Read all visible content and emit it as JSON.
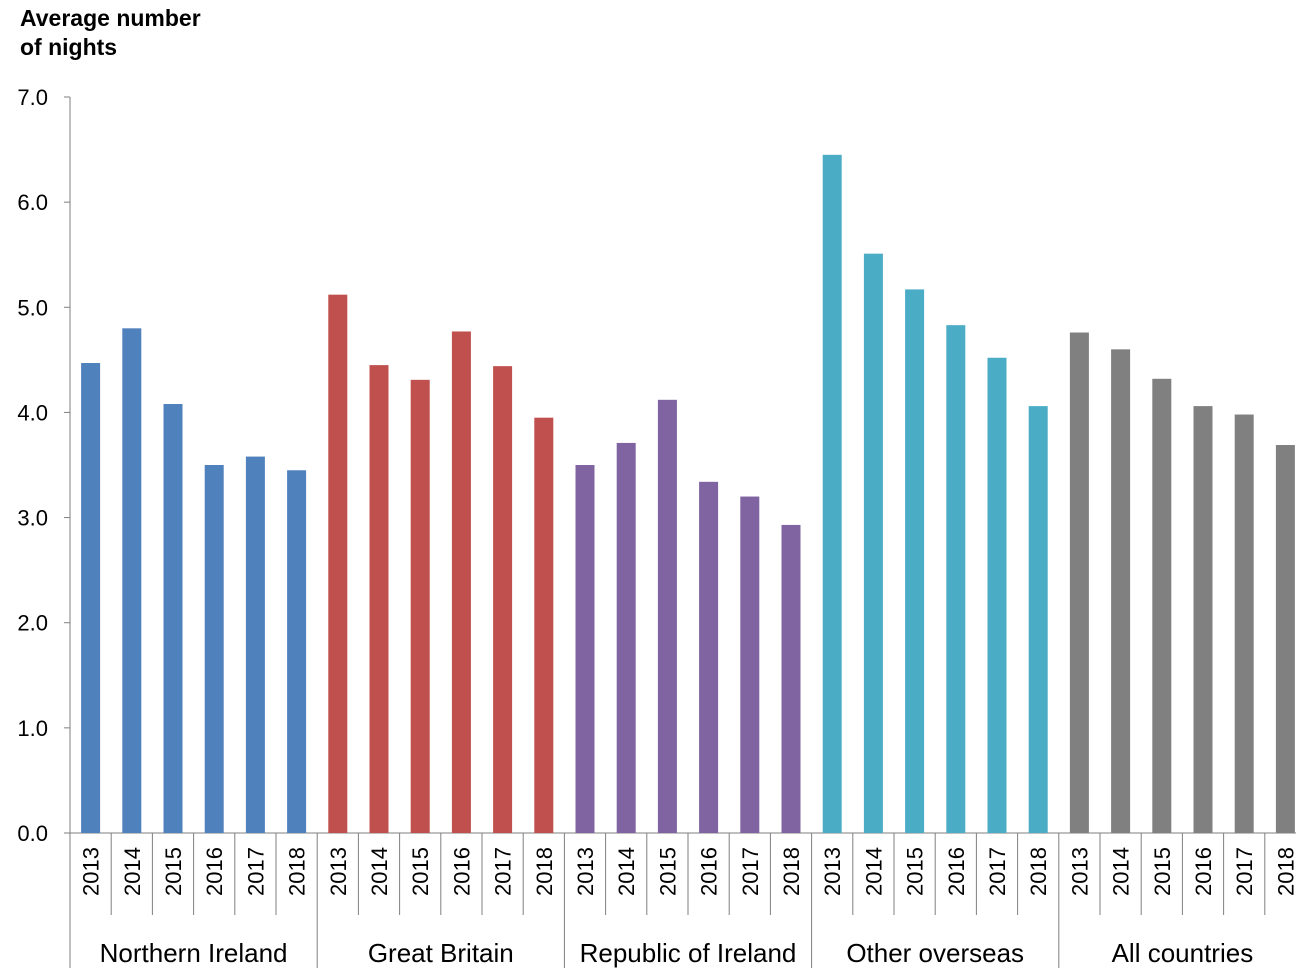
{
  "chart_data": {
    "type": "bar",
    "ylabel": "Average number\nof nights",
    "xlabel": "",
    "ylim": [
      0,
      7
    ],
    "yticks": [
      "0.0",
      "1.0",
      "2.0",
      "3.0",
      "4.0",
      "5.0",
      "6.0",
      "7.0"
    ],
    "grid": false,
    "legend": "none",
    "groups": [
      {
        "name": "Northern Ireland",
        "color": "#4f81bd",
        "categories": [
          "2013",
          "2014",
          "2015",
          "2016",
          "2017",
          "2018"
        ],
        "values": [
          4.47,
          4.8,
          4.08,
          3.5,
          3.58,
          3.45
        ]
      },
      {
        "name": "Great Britain",
        "color": "#c0504d",
        "categories": [
          "2013",
          "2014",
          "2015",
          "2016",
          "2017",
          "2018"
        ],
        "values": [
          5.12,
          4.45,
          4.31,
          4.77,
          4.44,
          3.95
        ]
      },
      {
        "name": "Republic of Ireland",
        "color": "#8064a2",
        "categories": [
          "2013",
          "2014",
          "2015",
          "2016",
          "2017",
          "2018"
        ],
        "values": [
          3.5,
          3.71,
          4.12,
          3.34,
          3.2,
          2.93
        ]
      },
      {
        "name": "Other overseas",
        "color": "#4bacc6",
        "categories": [
          "2013",
          "2014",
          "2015",
          "2016",
          "2017",
          "2018"
        ],
        "values": [
          6.45,
          5.51,
          5.17,
          4.83,
          4.52,
          4.06
        ]
      },
      {
        "name": "All countries",
        "color": "#808080",
        "categories": [
          "2013",
          "2014",
          "2015",
          "2016",
          "2017",
          "2018"
        ],
        "values": [
          4.76,
          4.6,
          4.32,
          4.06,
          3.98,
          3.69
        ]
      }
    ]
  }
}
